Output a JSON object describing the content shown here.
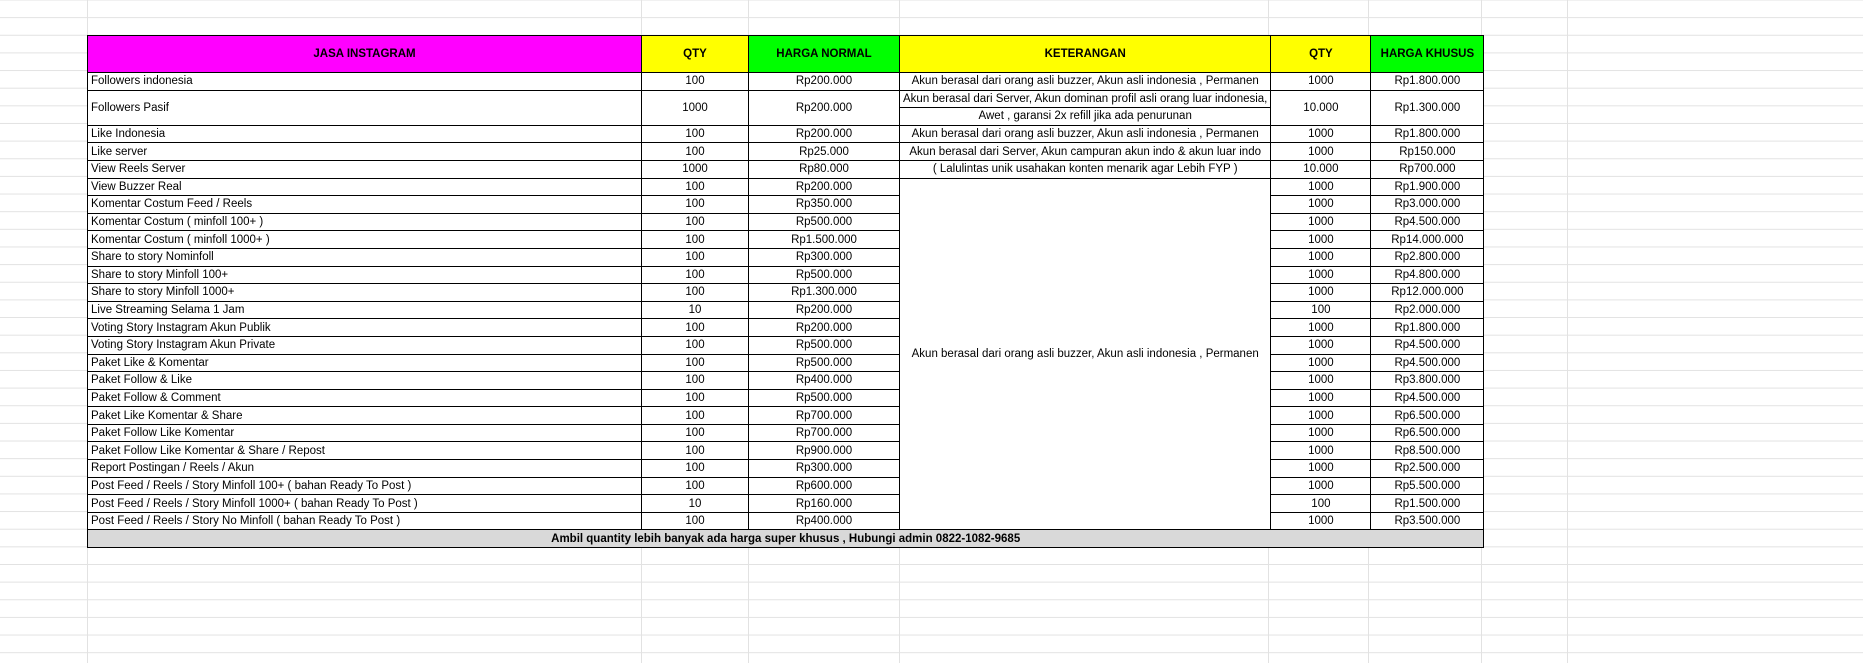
{
  "header": {
    "service": "JASA INSTAGRAM",
    "qty": "QTY",
    "normal_price": "HARGA NORMAL",
    "description": "KETERANGAN",
    "qty2": "QTY",
    "special_price": "HARGA KHUSUS"
  },
  "colors": {
    "service": "#ff00ff",
    "qty": "#ffff00",
    "normal_price": "#00ff00",
    "description": "#ffff00",
    "qty2": "#ffff00",
    "special_price": "#00ff00",
    "footer": "#d9d9d9"
  },
  "rows": [
    {
      "service": "Followers indonesia",
      "qty": "100",
      "normal": "Rp200.000",
      "desc": "Akun berasal dari orang asli buzzer, Akun asli indonesia , Permanen",
      "qty2": "1000",
      "special": "Rp1.800.000"
    },
    {
      "service": "Followers Pasif",
      "qty": "1000",
      "normal": "Rp200.000",
      "desc": "Akun berasal dari Server, Akun dominan profil asli orang luar indonesia,",
      "desc2": "Awet , garansi 2x refill jika ada penurunan",
      "qty2": "10.000",
      "special": "Rp1.300.000"
    },
    {
      "service": "Like Indonesia",
      "qty": "100",
      "normal": "Rp200.000",
      "desc": "Akun berasal dari orang asli buzzer, Akun asli indonesia , Permanen",
      "qty2": "1000",
      "special": "Rp1.800.000"
    },
    {
      "service": "Like server",
      "qty": "100",
      "normal": "Rp25.000",
      "desc": "Akun berasal dari Server, Akun campuran akun indo & akun luar indo",
      "qty2": "1000",
      "special": "Rp150.000"
    },
    {
      "service": "View Reels Server",
      "qty": "1000",
      "normal": "Rp80.000",
      "desc": "( Lalulintas unik usahakan konten menarik agar Lebih FYP )",
      "qty2": "10.000",
      "special": "Rp700.000"
    },
    {
      "service": "View Buzzer Real",
      "qty": "100",
      "normal": "Rp200.000",
      "qty2": "1000",
      "special": "Rp1.900.000"
    },
    {
      "service": "Komentar Costum Feed / Reels",
      "qty": "100",
      "normal": "Rp350.000",
      "qty2": "1000",
      "special": "Rp3.000.000"
    },
    {
      "service": "Komentar Costum ( minfoll 100+ )",
      "qty": "100",
      "normal": "Rp500.000",
      "qty2": "1000",
      "special": "Rp4.500.000"
    },
    {
      "service": "Komentar Costum ( minfoll 1000+ )",
      "qty": "100",
      "normal": "Rp1.500.000",
      "qty2": "1000",
      "special": "Rp14.000.000"
    },
    {
      "service": "Share to story Nominfoll",
      "qty": "100",
      "normal": "Rp300.000",
      "qty2": "1000",
      "special": "Rp2.800.000"
    },
    {
      "service": "Share to story Minfoll 100+",
      "qty": "100",
      "normal": "Rp500.000",
      "qty2": "1000",
      "special": "Rp4.800.000"
    },
    {
      "service": "Share to story Minfoll 1000+",
      "qty": "100",
      "normal": "Rp1.300.000",
      "qty2": "1000",
      "special": "Rp12.000.000"
    },
    {
      "service": "Live Streaming Selama 1 Jam",
      "qty": "10",
      "normal": "Rp200.000",
      "qty2": "100",
      "special": "Rp2.000.000"
    },
    {
      "service": "Voting Story Instagram Akun Publik",
      "qty": "100",
      "normal": "Rp200.000",
      "qty2": "1000",
      "special": "Rp1.800.000"
    },
    {
      "service": "Voting Story Instagram Akun Private",
      "qty": "100",
      "normal": "Rp500.000",
      "qty2": "1000",
      "special": "Rp4.500.000"
    },
    {
      "service": "Paket Like & Komentar",
      "qty": "100",
      "normal": "Rp500.000",
      "qty2": "1000",
      "special": "Rp4.500.000"
    },
    {
      "service": "Paket Follow & Like",
      "qty": "100",
      "normal": "Rp400.000",
      "qty2": "1000",
      "special": "Rp3.800.000"
    },
    {
      "service": "Paket Follow & Comment",
      "qty": "100",
      "normal": "Rp500.000",
      "qty2": "1000",
      "special": "Rp4.500.000"
    },
    {
      "service": "Paket Like Komentar & Share",
      "qty": "100",
      "normal": "Rp700.000",
      "qty2": "1000",
      "special": "Rp6.500.000"
    },
    {
      "service": "Paket Follow Like Komentar",
      "qty": "100",
      "normal": "Rp700.000",
      "qty2": "1000",
      "special": "Rp6.500.000"
    },
    {
      "service": "Paket Follow Like Komentar & Share / Repost",
      "qty": "100",
      "normal": "Rp900.000",
      "qty2": "1000",
      "special": "Rp8.500.000"
    },
    {
      "service": "Report Postingan / Reels / Akun",
      "qty": "100",
      "normal": "Rp300.000",
      "qty2": "1000",
      "special": "Rp2.500.000"
    },
    {
      "service": "Post Feed / Reels / Story Minfoll 100+ ( bahan Ready To Post )",
      "qty": "100",
      "normal": "Rp600.000",
      "qty2": "1000",
      "special": "Rp5.500.000"
    },
    {
      "service": "Post Feed / Reels / Story Minfoll 1000+ ( bahan Ready To Post )",
      "qty": "10",
      "normal": "Rp160.000",
      "qty2": "100",
      "special": "Rp1.500.000"
    },
    {
      "service": "Post Feed / Reels / Story No Minfoll ( bahan Ready To Post )",
      "qty": "100",
      "normal": "Rp400.000",
      "qty2": "1000",
      "special": "Rp3.500.000"
    }
  ],
  "merged_desc": "Akun berasal dari orang asli buzzer, Akun asli indonesia , Permanen",
  "footer": "Ambil quantity lebih banyak ada harga super khusus , Hubungi admin 0822-1082-9685"
}
